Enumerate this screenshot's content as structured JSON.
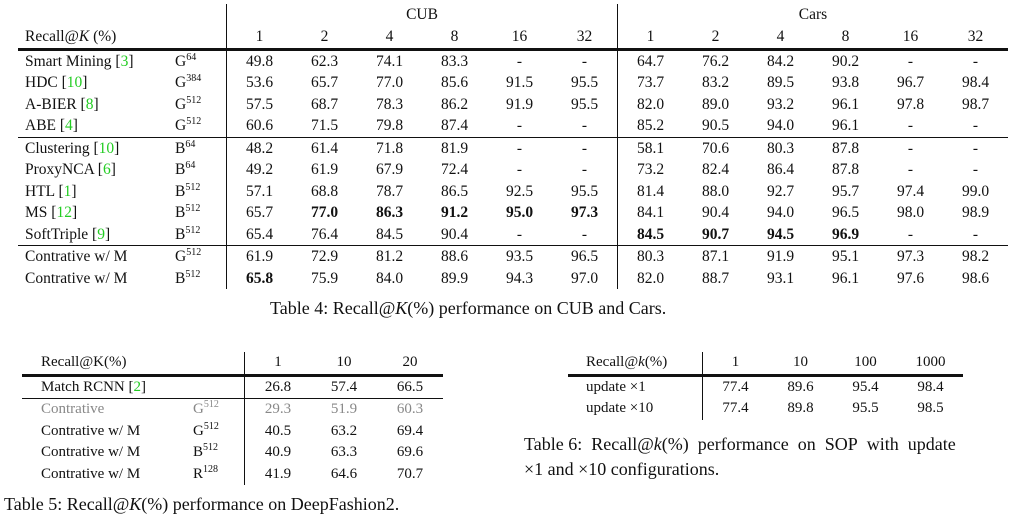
{
  "table4": {
    "header_label": "Recall@K (%)",
    "groups": [
      "CUB",
      "Cars"
    ],
    "k_values": [
      "1",
      "2",
      "4",
      "8",
      "16",
      "32",
      "1",
      "2",
      "4",
      "8",
      "16",
      "32"
    ],
    "sections": [
      [
        {
          "method": "Smart Mining",
          "cite": "3",
          "backbone": "G",
          "dim": "64",
          "values": [
            "49.8",
            "62.3",
            "74.1",
            "83.3",
            "-",
            "-",
            "64.7",
            "76.2",
            "84.2",
            "90.2",
            "-",
            "-"
          ],
          "bold": []
        },
        {
          "method": "HDC",
          "cite": "10",
          "backbone": "G",
          "dim": "384",
          "values": [
            "53.6",
            "65.7",
            "77.0",
            "85.6",
            "91.5",
            "95.5",
            "73.7",
            "83.2",
            "89.5",
            "93.8",
            "96.7",
            "98.4"
          ],
          "bold": []
        },
        {
          "method": "A-BIER",
          "cite": "8",
          "backbone": "G",
          "dim": "512",
          "values": [
            "57.5",
            "68.7",
            "78.3",
            "86.2",
            "91.9",
            "95.5",
            "82.0",
            "89.0",
            "93.2",
            "96.1",
            "97.8",
            "98.7"
          ],
          "bold": []
        },
        {
          "method": "ABE",
          "cite": "4",
          "backbone": "G",
          "dim": "512",
          "values": [
            "60.6",
            "71.5",
            "79.8",
            "87.4",
            "-",
            "-",
            "85.2",
            "90.5",
            "94.0",
            "96.1",
            "-",
            "-"
          ],
          "bold": []
        }
      ],
      [
        {
          "method": "Clustering",
          "cite": "10",
          "backbone": "B",
          "dim": "64",
          "values": [
            "48.2",
            "61.4",
            "71.8",
            "81.9",
            "-",
            "-",
            "58.1",
            "70.6",
            "80.3",
            "87.8",
            "-",
            "-"
          ],
          "bold": []
        },
        {
          "method": "ProxyNCA",
          "cite": "6",
          "backbone": "B",
          "dim": "64",
          "values": [
            "49.2",
            "61.9",
            "67.9",
            "72.4",
            "-",
            "-",
            "73.2",
            "82.4",
            "86.4",
            "87.8",
            "-",
            "-"
          ],
          "bold": []
        },
        {
          "method": "HTL",
          "cite": "1",
          "backbone": "B",
          "dim": "512",
          "values": [
            "57.1",
            "68.8",
            "78.7",
            "86.5",
            "92.5",
            "95.5",
            "81.4",
            "88.0",
            "92.7",
            "95.7",
            "97.4",
            "99.0"
          ],
          "bold": []
        },
        {
          "method": "MS",
          "cite": "12",
          "backbone": "B",
          "dim": "512",
          "values": [
            "65.7",
            "77.0",
            "86.3",
            "91.2",
            "95.0",
            "97.3",
            "84.1",
            "90.4",
            "94.0",
            "96.5",
            "98.0",
            "98.9"
          ],
          "bold": [
            1,
            2,
            3,
            4,
            5
          ]
        },
        {
          "method": "SoftTriple",
          "cite": "9",
          "backbone": "B",
          "dim": "512",
          "values": [
            "65.4",
            "76.4",
            "84.5",
            "90.4",
            "-",
            "-",
            "84.5",
            "90.7",
            "94.5",
            "96.9",
            "-",
            "-"
          ],
          "bold": [
            6,
            7,
            8,
            9
          ]
        }
      ],
      [
        {
          "method": "Contrative w/ M",
          "cite": "",
          "backbone": "G",
          "dim": "512",
          "values": [
            "61.9",
            "72.9",
            "81.2",
            "88.6",
            "93.5",
            "96.5",
            "80.3",
            "87.1",
            "91.9",
            "95.1",
            "97.3",
            "98.2"
          ],
          "bold": []
        },
        {
          "method": "Contrative w/ M",
          "cite": "",
          "backbone": "B",
          "dim": "512",
          "values": [
            "65.8",
            "75.9",
            "84.0",
            "89.9",
            "94.3",
            "97.0",
            "82.0",
            "88.7",
            "93.1",
            "96.1",
            "97.6",
            "98.6"
          ],
          "bold": [
            0
          ]
        }
      ]
    ],
    "caption": "Table 4: Recall@K(%) performance on CUB and Cars."
  },
  "table5": {
    "header_label": "Recall@K(%)",
    "k_values": [
      "1",
      "10",
      "20"
    ],
    "sections": [
      [
        {
          "method": "Match RCNN",
          "cite": "2",
          "backbone": "",
          "dim": "",
          "values": [
            "26.8",
            "57.4",
            "66.5"
          ],
          "style": "normal"
        }
      ],
      [
        {
          "method": "Contrative",
          "cite": "",
          "backbone": "G",
          "dim": "512",
          "values": [
            "29.3",
            "51.9",
            "60.3"
          ],
          "style": "gray"
        },
        {
          "method": "Contrative w/ M",
          "cite": "",
          "backbone": "G",
          "dim": "512",
          "values": [
            "40.5",
            "63.2",
            "69.4"
          ],
          "style": "normal"
        },
        {
          "method": "Contrative w/ M",
          "cite": "",
          "backbone": "B",
          "dim": "512",
          "values": [
            "40.9",
            "63.3",
            "69.6"
          ],
          "style": "normal"
        },
        {
          "method": "Contrative w/ M",
          "cite": "",
          "backbone": "R",
          "dim": "128",
          "values": [
            "41.9",
            "64.6",
            "70.7"
          ],
          "style": "bold"
        }
      ]
    ],
    "caption": "Table 5: Recall@K(%) performance on DeepFashion2."
  },
  "table6": {
    "header_label": "Recall@k(%)",
    "k_values": [
      "1",
      "10",
      "100",
      "1000"
    ],
    "rows": [
      {
        "config": "update ×1",
        "values": [
          "77.4",
          "89.6",
          "95.4",
          "98.4"
        ]
      },
      {
        "config": "update ×10",
        "values": [
          "77.4",
          "89.8",
          "95.5",
          "98.5"
        ]
      }
    ],
    "caption_line1": "Table 6: Recall@k(%) performance on SOP with update",
    "caption_line2": "×1 and ×10 configurations."
  },
  "colors": {
    "citation": "#22cc22",
    "text": "#111111",
    "gray_row": "#888888"
  }
}
